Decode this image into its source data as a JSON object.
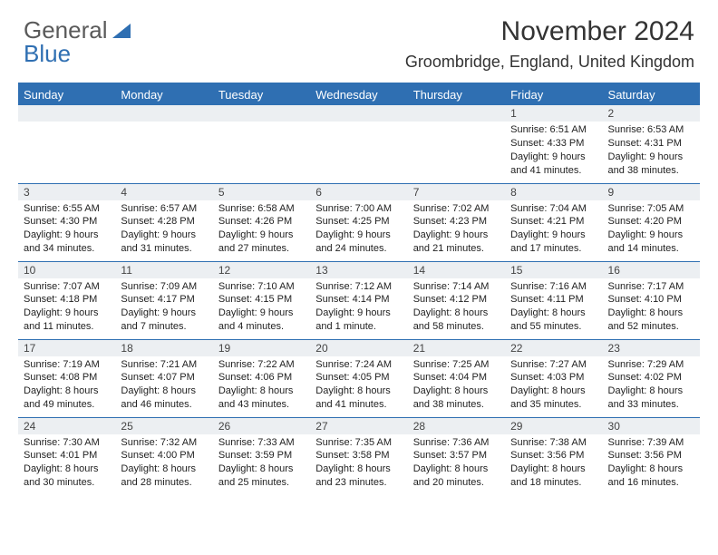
{
  "logo": {
    "word1": "General",
    "word2": "Blue",
    "triangle_color": "#2f6fb2"
  },
  "title": "November 2024",
  "location": "Groombridge, England, United Kingdom",
  "colors": {
    "header_bg": "#2f6fb2",
    "header_text": "#ffffff",
    "daybar_bg": "#eceff2",
    "rule": "#2f6fb2",
    "page_bg": "#ffffff",
    "text": "#222222"
  },
  "columns": [
    "Sunday",
    "Monday",
    "Tuesday",
    "Wednesday",
    "Thursday",
    "Friday",
    "Saturday"
  ],
  "weeks": [
    [
      {
        "n": "",
        "sr": "",
        "ss": "",
        "dl": ""
      },
      {
        "n": "",
        "sr": "",
        "ss": "",
        "dl": ""
      },
      {
        "n": "",
        "sr": "",
        "ss": "",
        "dl": ""
      },
      {
        "n": "",
        "sr": "",
        "ss": "",
        "dl": ""
      },
      {
        "n": "",
        "sr": "",
        "ss": "",
        "dl": ""
      },
      {
        "n": "1",
        "sr": "Sunrise: 6:51 AM",
        "ss": "Sunset: 4:33 PM",
        "dl": "Daylight: 9 hours and 41 minutes."
      },
      {
        "n": "2",
        "sr": "Sunrise: 6:53 AM",
        "ss": "Sunset: 4:31 PM",
        "dl": "Daylight: 9 hours and 38 minutes."
      }
    ],
    [
      {
        "n": "3",
        "sr": "Sunrise: 6:55 AM",
        "ss": "Sunset: 4:30 PM",
        "dl": "Daylight: 9 hours and 34 minutes."
      },
      {
        "n": "4",
        "sr": "Sunrise: 6:57 AM",
        "ss": "Sunset: 4:28 PM",
        "dl": "Daylight: 9 hours and 31 minutes."
      },
      {
        "n": "5",
        "sr": "Sunrise: 6:58 AM",
        "ss": "Sunset: 4:26 PM",
        "dl": "Daylight: 9 hours and 27 minutes."
      },
      {
        "n": "6",
        "sr": "Sunrise: 7:00 AM",
        "ss": "Sunset: 4:25 PM",
        "dl": "Daylight: 9 hours and 24 minutes."
      },
      {
        "n": "7",
        "sr": "Sunrise: 7:02 AM",
        "ss": "Sunset: 4:23 PM",
        "dl": "Daylight: 9 hours and 21 minutes."
      },
      {
        "n": "8",
        "sr": "Sunrise: 7:04 AM",
        "ss": "Sunset: 4:21 PM",
        "dl": "Daylight: 9 hours and 17 minutes."
      },
      {
        "n": "9",
        "sr": "Sunrise: 7:05 AM",
        "ss": "Sunset: 4:20 PM",
        "dl": "Daylight: 9 hours and 14 minutes."
      }
    ],
    [
      {
        "n": "10",
        "sr": "Sunrise: 7:07 AM",
        "ss": "Sunset: 4:18 PM",
        "dl": "Daylight: 9 hours and 11 minutes."
      },
      {
        "n": "11",
        "sr": "Sunrise: 7:09 AM",
        "ss": "Sunset: 4:17 PM",
        "dl": "Daylight: 9 hours and 7 minutes."
      },
      {
        "n": "12",
        "sr": "Sunrise: 7:10 AM",
        "ss": "Sunset: 4:15 PM",
        "dl": "Daylight: 9 hours and 4 minutes."
      },
      {
        "n": "13",
        "sr": "Sunrise: 7:12 AM",
        "ss": "Sunset: 4:14 PM",
        "dl": "Daylight: 9 hours and 1 minute."
      },
      {
        "n": "14",
        "sr": "Sunrise: 7:14 AM",
        "ss": "Sunset: 4:12 PM",
        "dl": "Daylight: 8 hours and 58 minutes."
      },
      {
        "n": "15",
        "sr": "Sunrise: 7:16 AM",
        "ss": "Sunset: 4:11 PM",
        "dl": "Daylight: 8 hours and 55 minutes."
      },
      {
        "n": "16",
        "sr": "Sunrise: 7:17 AM",
        "ss": "Sunset: 4:10 PM",
        "dl": "Daylight: 8 hours and 52 minutes."
      }
    ],
    [
      {
        "n": "17",
        "sr": "Sunrise: 7:19 AM",
        "ss": "Sunset: 4:08 PM",
        "dl": "Daylight: 8 hours and 49 minutes."
      },
      {
        "n": "18",
        "sr": "Sunrise: 7:21 AM",
        "ss": "Sunset: 4:07 PM",
        "dl": "Daylight: 8 hours and 46 minutes."
      },
      {
        "n": "19",
        "sr": "Sunrise: 7:22 AM",
        "ss": "Sunset: 4:06 PM",
        "dl": "Daylight: 8 hours and 43 minutes."
      },
      {
        "n": "20",
        "sr": "Sunrise: 7:24 AM",
        "ss": "Sunset: 4:05 PM",
        "dl": "Daylight: 8 hours and 41 minutes."
      },
      {
        "n": "21",
        "sr": "Sunrise: 7:25 AM",
        "ss": "Sunset: 4:04 PM",
        "dl": "Daylight: 8 hours and 38 minutes."
      },
      {
        "n": "22",
        "sr": "Sunrise: 7:27 AM",
        "ss": "Sunset: 4:03 PM",
        "dl": "Daylight: 8 hours and 35 minutes."
      },
      {
        "n": "23",
        "sr": "Sunrise: 7:29 AM",
        "ss": "Sunset: 4:02 PM",
        "dl": "Daylight: 8 hours and 33 minutes."
      }
    ],
    [
      {
        "n": "24",
        "sr": "Sunrise: 7:30 AM",
        "ss": "Sunset: 4:01 PM",
        "dl": "Daylight: 8 hours and 30 minutes."
      },
      {
        "n": "25",
        "sr": "Sunrise: 7:32 AM",
        "ss": "Sunset: 4:00 PM",
        "dl": "Daylight: 8 hours and 28 minutes."
      },
      {
        "n": "26",
        "sr": "Sunrise: 7:33 AM",
        "ss": "Sunset: 3:59 PM",
        "dl": "Daylight: 8 hours and 25 minutes."
      },
      {
        "n": "27",
        "sr": "Sunrise: 7:35 AM",
        "ss": "Sunset: 3:58 PM",
        "dl": "Daylight: 8 hours and 23 minutes."
      },
      {
        "n": "28",
        "sr": "Sunrise: 7:36 AM",
        "ss": "Sunset: 3:57 PM",
        "dl": "Daylight: 8 hours and 20 minutes."
      },
      {
        "n": "29",
        "sr": "Sunrise: 7:38 AM",
        "ss": "Sunset: 3:56 PM",
        "dl": "Daylight: 8 hours and 18 minutes."
      },
      {
        "n": "30",
        "sr": "Sunrise: 7:39 AM",
        "ss": "Sunset: 3:56 PM",
        "dl": "Daylight: 8 hours and 16 minutes."
      }
    ]
  ]
}
